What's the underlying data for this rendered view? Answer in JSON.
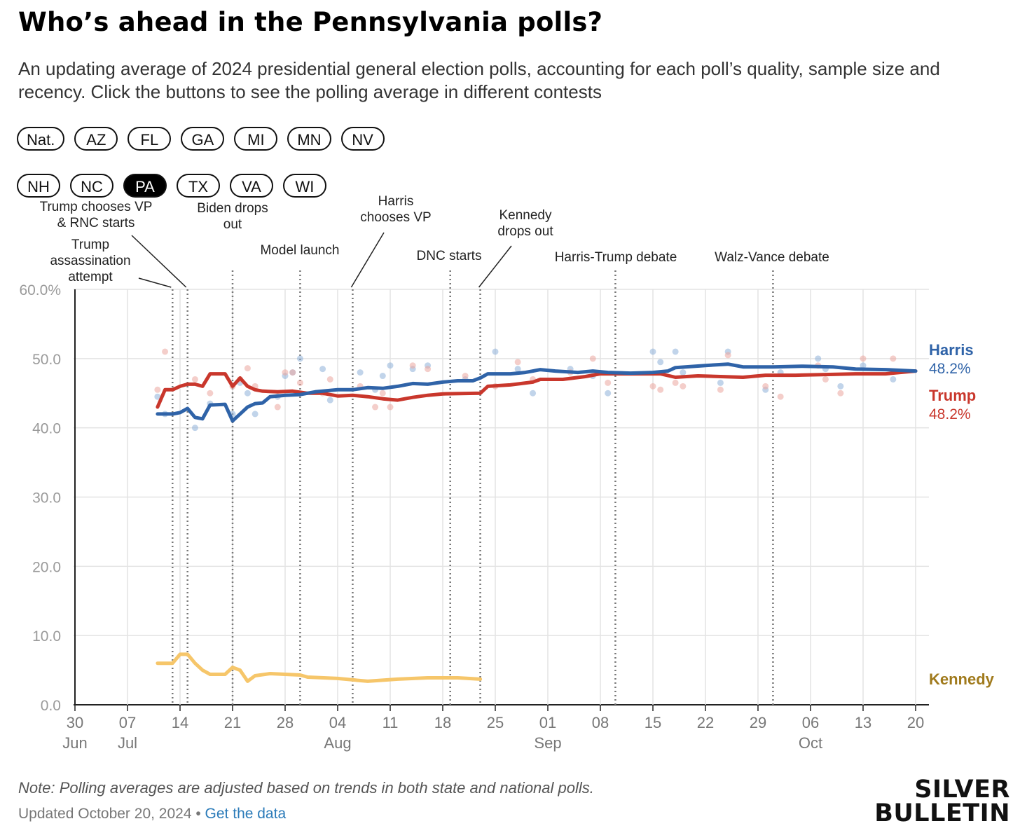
{
  "title": "Who’s ahead in the Pennsylvania polls?",
  "subtitle": "An updating average of 2024 presidential general election polls, accounting for each poll’s quality, sample size and recency. Click the buttons to see the polling average in different contests",
  "buttons_row1": [
    "Nat.",
    "AZ",
    "FL",
    "GA",
    "MI",
    "MN",
    "NV"
  ],
  "buttons_row2": [
    "NH",
    "NC",
    "PA",
    "TX",
    "VA",
    "WI"
  ],
  "active_button": "PA",
  "note": "Note: Polling averages are adjusted based on trends in both state and national polls.",
  "updated": "Updated October 20, 2024",
  "separator": " • ",
  "get_data_link": "Get the data",
  "logo": {
    "line1": "SILVER",
    "line2": "BULLETIN"
  },
  "chart_data": {
    "type": "line",
    "x_start": "2024-06-30",
    "x_end": "2024-10-20",
    "ylim": [
      0,
      60
    ],
    "yticks": [
      {
        "value": 0,
        "label": "0.0"
      },
      {
        "value": 10,
        "label": "10.0"
      },
      {
        "value": 20,
        "label": "20.0"
      },
      {
        "value": 30,
        "label": "30.0"
      },
      {
        "value": 40,
        "label": "40.0"
      },
      {
        "value": 50,
        "label": "50.0"
      },
      {
        "value": 60,
        "label": "60.0%"
      }
    ],
    "xticks": [
      {
        "date": "2024-06-30",
        "day": "30",
        "month": "Jun"
      },
      {
        "date": "2024-07-07",
        "day": "07",
        "month": "Jul"
      },
      {
        "date": "2024-07-14",
        "day": "14",
        "month": ""
      },
      {
        "date": "2024-07-21",
        "day": "21",
        "month": ""
      },
      {
        "date": "2024-07-28",
        "day": "28",
        "month": ""
      },
      {
        "date": "2024-08-04",
        "day": "04",
        "month": "Aug"
      },
      {
        "date": "2024-08-11",
        "day": "11",
        "month": ""
      },
      {
        "date": "2024-08-18",
        "day": "18",
        "month": ""
      },
      {
        "date": "2024-08-25",
        "day": "25",
        "month": ""
      },
      {
        "date": "2024-09-01",
        "day": "01",
        "month": "Sep"
      },
      {
        "date": "2024-09-08",
        "day": "08",
        "month": ""
      },
      {
        "date": "2024-09-15",
        "day": "15",
        "month": ""
      },
      {
        "date": "2024-09-22",
        "day": "22",
        "month": ""
      },
      {
        "date": "2024-09-29",
        "day": "29",
        "month": ""
      },
      {
        "date": "2024-10-06",
        "day": "06",
        "month": "Oct"
      },
      {
        "date": "2024-10-13",
        "day": "13",
        "month": ""
      },
      {
        "date": "2024-10-20",
        "day": "20",
        "month": ""
      }
    ],
    "grid": true,
    "series": [
      {
        "name": "Harris",
        "end_label": "48.2%",
        "color": "#2f63a8",
        "dot_color": "#8eb0d9",
        "points": [
          [
            "2024-07-11",
            42.0
          ],
          [
            "2024-07-13",
            42.0
          ],
          [
            "2024-07-14",
            42.2
          ],
          [
            "2024-07-15",
            42.8
          ],
          [
            "2024-07-16",
            41.5
          ],
          [
            "2024-07-17",
            41.3
          ],
          [
            "2024-07-18",
            43.3
          ],
          [
            "2024-07-20",
            43.4
          ],
          [
            "2024-07-21",
            41.0
          ],
          [
            "2024-07-22",
            42.0
          ],
          [
            "2024-07-23",
            43.0
          ],
          [
            "2024-07-24",
            43.5
          ],
          [
            "2024-07-25",
            43.6
          ],
          [
            "2024-07-26",
            44.5
          ],
          [
            "2024-07-28",
            44.7
          ],
          [
            "2024-07-30",
            44.8
          ],
          [
            "2024-08-01",
            45.2
          ],
          [
            "2024-08-04",
            45.5
          ],
          [
            "2024-08-06",
            45.5
          ],
          [
            "2024-08-08",
            45.8
          ],
          [
            "2024-08-10",
            45.7
          ],
          [
            "2024-08-12",
            46.0
          ],
          [
            "2024-08-14",
            46.4
          ],
          [
            "2024-08-16",
            46.3
          ],
          [
            "2024-08-18",
            46.6
          ],
          [
            "2024-08-20",
            46.8
          ],
          [
            "2024-08-22",
            46.8
          ],
          [
            "2024-08-23",
            47.2
          ],
          [
            "2024-08-24",
            47.8
          ],
          [
            "2024-08-27",
            47.8
          ],
          [
            "2024-08-29",
            48.0
          ],
          [
            "2024-08-31",
            48.4
          ],
          [
            "2024-09-02",
            48.2
          ],
          [
            "2024-09-05",
            48.0
          ],
          [
            "2024-09-07",
            48.2
          ],
          [
            "2024-09-09",
            48.0
          ],
          [
            "2024-09-12",
            47.9
          ],
          [
            "2024-09-15",
            48.0
          ],
          [
            "2024-09-17",
            48.2
          ],
          [
            "2024-09-18",
            48.7
          ],
          [
            "2024-09-22",
            49.0
          ],
          [
            "2024-09-25",
            49.2
          ],
          [
            "2024-09-27",
            48.8
          ],
          [
            "2024-10-01",
            48.8
          ],
          [
            "2024-10-05",
            48.9
          ],
          [
            "2024-10-09",
            48.8
          ],
          [
            "2024-10-12",
            48.5
          ],
          [
            "2024-10-16",
            48.4
          ],
          [
            "2024-10-20",
            48.2
          ]
        ]
      },
      {
        "name": "Trump",
        "end_label": "48.2%",
        "color": "#c9372c",
        "dot_color": "#eba59e",
        "points": [
          [
            "2024-07-11",
            43.0
          ],
          [
            "2024-07-12",
            45.5
          ],
          [
            "2024-07-13",
            45.5
          ],
          [
            "2024-07-14",
            46.0
          ],
          [
            "2024-07-15",
            46.3
          ],
          [
            "2024-07-16",
            46.3
          ],
          [
            "2024-07-17",
            46.0
          ],
          [
            "2024-07-18",
            47.8
          ],
          [
            "2024-07-20",
            47.8
          ],
          [
            "2024-07-21",
            46.0
          ],
          [
            "2024-07-22",
            47.2
          ],
          [
            "2024-07-23",
            46.0
          ],
          [
            "2024-07-24",
            45.5
          ],
          [
            "2024-07-25",
            45.3
          ],
          [
            "2024-07-27",
            45.2
          ],
          [
            "2024-07-29",
            45.3
          ],
          [
            "2024-07-31",
            45.0
          ],
          [
            "2024-08-02",
            45.0
          ],
          [
            "2024-08-04",
            44.6
          ],
          [
            "2024-08-06",
            44.7
          ],
          [
            "2024-08-08",
            44.5
          ],
          [
            "2024-08-10",
            44.2
          ],
          [
            "2024-08-12",
            44.0
          ],
          [
            "2024-08-14",
            44.4
          ],
          [
            "2024-08-16",
            44.7
          ],
          [
            "2024-08-18",
            44.9
          ],
          [
            "2024-08-23",
            45.0
          ],
          [
            "2024-08-24",
            46.0
          ],
          [
            "2024-08-27",
            46.2
          ],
          [
            "2024-08-30",
            46.6
          ],
          [
            "2024-08-31",
            47.0
          ],
          [
            "2024-09-03",
            47.0
          ],
          [
            "2024-09-06",
            47.4
          ],
          [
            "2024-09-08",
            47.8
          ],
          [
            "2024-09-10",
            47.8
          ],
          [
            "2024-09-13",
            47.8
          ],
          [
            "2024-09-16",
            47.8
          ],
          [
            "2024-09-18",
            47.3
          ],
          [
            "2024-09-21",
            47.5
          ],
          [
            "2024-09-24",
            47.4
          ],
          [
            "2024-09-27",
            47.3
          ],
          [
            "2024-09-30",
            47.6
          ],
          [
            "2024-10-04",
            47.6
          ],
          [
            "2024-10-08",
            47.7
          ],
          [
            "2024-10-12",
            47.8
          ],
          [
            "2024-10-16",
            47.8
          ],
          [
            "2024-10-20",
            48.2
          ]
        ]
      },
      {
        "name": "Kennedy",
        "color": "#f6c66a",
        "label_color": "#a07a1c",
        "points": [
          [
            "2024-07-11",
            6.0
          ],
          [
            "2024-07-13",
            6.0
          ],
          [
            "2024-07-14",
            7.3
          ],
          [
            "2024-07-15",
            7.3
          ],
          [
            "2024-07-16",
            6.0
          ],
          [
            "2024-07-17",
            5.0
          ],
          [
            "2024-07-18",
            4.4
          ],
          [
            "2024-07-20",
            4.4
          ],
          [
            "2024-07-21",
            5.4
          ],
          [
            "2024-07-22",
            5.0
          ],
          [
            "2024-07-23",
            3.4
          ],
          [
            "2024-07-24",
            4.2
          ],
          [
            "2024-07-26",
            4.5
          ],
          [
            "2024-07-30",
            4.3
          ],
          [
            "2024-07-31",
            4.0
          ],
          [
            "2024-08-04",
            3.8
          ],
          [
            "2024-08-08",
            3.4
          ],
          [
            "2024-08-12",
            3.7
          ],
          [
            "2024-08-16",
            3.9
          ],
          [
            "2024-08-20",
            3.9
          ],
          [
            "2024-08-23",
            3.7
          ]
        ]
      }
    ],
    "polls": [
      {
        "date": "2024-07-11",
        "harris": 44.5,
        "trump": 45.5
      },
      {
        "date": "2024-07-12",
        "harris": 42.0,
        "trump": 51.0
      },
      {
        "date": "2024-07-16",
        "harris": 40.0,
        "trump": 47.0
      },
      {
        "date": "2024-07-18",
        "harris": 43.5,
        "trump": 45.0
      },
      {
        "date": "2024-07-21",
        "harris": 42.0,
        "trump": 46.0
      },
      {
        "date": "2024-07-22",
        "harris": 46.5,
        "trump": 47.0
      },
      {
        "date": "2024-07-23",
        "harris": 45.0,
        "trump": 48.6
      },
      {
        "date": "2024-07-24",
        "harris": 42.0,
        "trump": 46.0
      },
      {
        "date": "2024-07-27",
        "harris": 44.5,
        "trump": 43.0
      },
      {
        "date": "2024-07-28",
        "harris": 47.5,
        "trump": 48.0
      },
      {
        "date": "2024-07-29",
        "harris": 48.0,
        "trump": 48.0
      },
      {
        "date": "2024-07-30",
        "harris": 50.0,
        "trump": 46.5
      },
      {
        "date": "2024-08-02",
        "harris": 48.5,
        "trump": 45.0
      },
      {
        "date": "2024-08-03",
        "harris": 44.0,
        "trump": 47.0
      },
      {
        "date": "2024-08-07",
        "harris": 48.0,
        "trump": 46.0
      },
      {
        "date": "2024-08-09",
        "harris": 45.5,
        "trump": 43.0
      },
      {
        "date": "2024-08-10",
        "harris": 47.5,
        "trump": 45.0
      },
      {
        "date": "2024-08-11",
        "harris": 49.0,
        "trump": 43.0
      },
      {
        "date": "2024-08-14",
        "harris": 48.5,
        "trump": 49.0
      },
      {
        "date": "2024-08-16",
        "harris": 49.0,
        "trump": 48.5
      },
      {
        "date": "2024-08-21",
        "harris": 47.0,
        "trump": 47.5
      },
      {
        "date": "2024-08-25",
        "harris": 51.0,
        "trump": 46.0
      },
      {
        "date": "2024-08-28",
        "harris": 48.5,
        "trump": 49.5
      },
      {
        "date": "2024-08-30",
        "harris": 45.0,
        "trump": 47.0
      },
      {
        "date": "2024-09-04",
        "harris": 48.5,
        "trump": 48.0
      },
      {
        "date": "2024-09-07",
        "harris": 47.5,
        "trump": 50.0
      },
      {
        "date": "2024-09-09",
        "harris": 45.0,
        "trump": 46.5
      },
      {
        "date": "2024-09-15",
        "harris": 51.0,
        "trump": 46.0
      },
      {
        "date": "2024-09-16",
        "harris": 49.5,
        "trump": 45.5
      },
      {
        "date": "2024-09-18",
        "harris": 51.0,
        "trump": 46.5
      },
      {
        "date": "2024-09-19",
        "harris": 48.0,
        "trump": 46.0
      },
      {
        "date": "2024-09-24",
        "harris": 46.5,
        "trump": 45.5
      },
      {
        "date": "2024-09-25",
        "harris": 51.0,
        "trump": 50.5
      },
      {
        "date": "2024-09-30",
        "harris": 45.5,
        "trump": 46.0
      },
      {
        "date": "2024-10-02",
        "harris": 48.0,
        "trump": 44.5
      },
      {
        "date": "2024-10-07",
        "harris": 50.0,
        "trump": 49.0
      },
      {
        "date": "2024-10-08",
        "harris": 48.5,
        "trump": 47.0
      },
      {
        "date": "2024-10-10",
        "harris": 46.0,
        "trump": 45.0
      },
      {
        "date": "2024-10-13",
        "harris": 49.0,
        "trump": 50.0
      },
      {
        "date": "2024-10-17",
        "harris": 47.0,
        "trump": 50.0
      }
    ],
    "events": [
      {
        "date": "2024-07-13",
        "label": [
          "Trump",
          "assassination",
          "attempt"
        ]
      },
      {
        "date": "2024-07-15",
        "label": [
          "Trump chooses VP",
          "& RNC starts"
        ]
      },
      {
        "date": "2024-07-21",
        "label": [
          "Biden drops",
          "out"
        ]
      },
      {
        "date": "2024-07-30",
        "label": [
          "Model launch"
        ]
      },
      {
        "date": "2024-08-06",
        "label": [
          "Harris",
          "chooses VP"
        ]
      },
      {
        "date": "2024-08-19",
        "label": [
          "DNC starts"
        ]
      },
      {
        "date": "2024-08-23",
        "label": [
          "Kennedy",
          "drops out"
        ]
      },
      {
        "date": "2024-09-10",
        "label": [
          "Harris-Trump debate"
        ]
      },
      {
        "date": "2024-10-01",
        "label": [
          "Walz-Vance debate"
        ]
      }
    ]
  }
}
